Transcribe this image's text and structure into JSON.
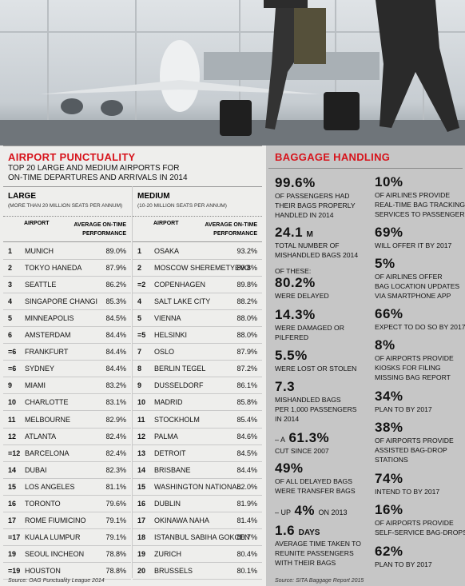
{
  "punctuality": {
    "title": "AIRPORT PUNCTUALITY",
    "subtitle": [
      "TOP 20 LARGE AND MEDIUM AIRPORTS FOR",
      "ON-TIME DEPARTURES AND ARRIVALS IN 2014"
    ],
    "large": {
      "heading": "LARGE",
      "note": "(MORE THAN 20 MILLION SEATS PER ANNUM)",
      "col_airport": "AIRPORT",
      "col_performance": "AVERAGE ON-TIME PERFORMANCE",
      "rows": [
        [
          "1",
          "MUNICH",
          "89.0%"
        ],
        [
          "2",
          "TOKYO HANEDA",
          "87.9%"
        ],
        [
          "3",
          "SEATTLE",
          "86.2%"
        ],
        [
          "4",
          "SINGAPORE CHANGI",
          "85.3%"
        ],
        [
          "5",
          "MINNEAPOLIS",
          "84.5%"
        ],
        [
          "6",
          "AMSTERDAM",
          "84.4%"
        ],
        [
          "=6",
          "FRANKFURT",
          "84.4%"
        ],
        [
          "=6",
          "SYDNEY",
          "84.4%"
        ],
        [
          "9",
          "MIAMI",
          "83.2%"
        ],
        [
          "10",
          "CHARLOTTE",
          "83.1%"
        ],
        [
          "11",
          "MELBOURNE",
          "82.9%"
        ],
        [
          "12",
          "ATLANTA",
          "82.4%"
        ],
        [
          "=12",
          "BARCELONA",
          "82.4%"
        ],
        [
          "14",
          "DUBAI",
          "82.3%"
        ],
        [
          "15",
          "LOS ANGELES",
          "81.1%"
        ],
        [
          "16",
          "TORONTO",
          "79.6%"
        ],
        [
          "17",
          "ROME FIUMICINO",
          "79.1%"
        ],
        [
          "=17",
          "KUALA LUMPUR",
          "79.1%"
        ],
        [
          "19",
          "SEOUL INCHEON",
          "78.8%"
        ],
        [
          "=19",
          "HOUSTON",
          "78.8%"
        ]
      ]
    },
    "medium": {
      "heading": "MEDIUM",
      "note": "(10-20 MILLION SEATS PER ANNUM)",
      "col_airport": "AIRPORT",
      "col_performance": "AVERAGE ON-TIME PERFORMANCE",
      "rows": [
        [
          "1",
          "OSAKA",
          "93.2%"
        ],
        [
          "2",
          "MOSCOW SHEREMETYEVO",
          "89.8%"
        ],
        [
          "=2",
          "COPENHAGEN",
          "89.8%"
        ],
        [
          "4",
          "SALT LAKE CITY",
          "88.2%"
        ],
        [
          "5",
          "VIENNA",
          "88.0%"
        ],
        [
          "=5",
          "HELSINKI",
          "88.0%"
        ],
        [
          "7",
          "OSLO",
          "87.9%"
        ],
        [
          "8",
          "BERLIN TEGEL",
          "87.2%"
        ],
        [
          "9",
          "DUSSELDORF",
          "86.1%"
        ],
        [
          "10",
          "MADRID",
          "85.8%"
        ],
        [
          "11",
          "STOCKHOLM",
          "85.4%"
        ],
        [
          "12",
          "PALMA",
          "84.6%"
        ],
        [
          "13",
          "DETROIT",
          "84.5%"
        ],
        [
          "14",
          "BRISBANE",
          "84.4%"
        ],
        [
          "15",
          "WASHINGTON NATIONAL",
          "82.0%"
        ],
        [
          "16",
          "DUBLIN",
          "81.9%"
        ],
        [
          "17",
          "OKINAWA NAHA",
          "81.4%"
        ],
        [
          "18",
          "ISTANBUL SABIHA GOKCEN",
          "80.7%"
        ],
        [
          "19",
          "ZURICH",
          "80.4%"
        ],
        [
          "20",
          "BRUSSELS",
          "80.1%"
        ]
      ]
    },
    "source": "Source: OAG Punctuality League 2014"
  },
  "baggage": {
    "title": "BAGGAGE HANDLING",
    "col1": [
      {
        "figure": "99.6%",
        "lines": [
          "OF PASSENGERS HAD",
          "THEIR BAGS PROPERLY",
          "HANDLED IN 2014"
        ]
      },
      {
        "figure": "24.1",
        "unit": "M",
        "lines": [
          "TOTAL NUMBER OF",
          "MISHANDLED BAGS 2014"
        ]
      },
      {
        "intro": "OF THESE:",
        "figure": "80.2%",
        "lines": [
          "WERE DELAYED"
        ]
      },
      {
        "figure": "14.3%",
        "lines": [
          "WERE DAMAGED OR",
          "PILFERED"
        ]
      },
      {
        "figure": "5.5%",
        "lines": [
          "WERE LOST OR STOLEN"
        ]
      },
      {
        "figure": "7.3",
        "lines": [
          "MISHANDLED BAGS",
          "PER 1,000 PASSENGERS",
          "IN 2014"
        ]
      },
      {
        "lead": "– A",
        "figure": "61.3%",
        "lines": [
          "CUT SINCE 2007"
        ]
      },
      {
        "figure": "49%",
        "lines": [
          "OF ALL DELAYED BAGS",
          "WERE TRANSFER BAGS"
        ]
      },
      {
        "lead": "– UP",
        "figure": "4%",
        "unit": "ON 2013"
      },
      {
        "figure": "1.6",
        "unit": "DAYS",
        "lines": [
          "AVERAGE TIME TAKEN TO",
          "REUNITE PASSENGERS",
          "WITH THEIR BAGS"
        ]
      }
    ],
    "col2": [
      {
        "figure": "10%",
        "lines": [
          "OF AIRLINES PROVIDE",
          "REAL-TIME BAG TRACKING",
          "SERVICES TO PASSENGERS"
        ]
      },
      {
        "figure": "69%",
        "lines": [
          "WILL OFFER IT BY 2017"
        ]
      },
      {
        "figure": "5%",
        "lines": [
          "OF AIRLINES OFFER",
          "BAG LOCATION UPDATES",
          "VIA SMARTPHONE APP"
        ]
      },
      {
        "figure": "66%",
        "lines": [
          "EXPECT TO DO SO BY 2017"
        ]
      },
      {
        "figure": "8%",
        "lines": [
          "OF AIRPORTS PROVIDE",
          "KIOSKS FOR FILING",
          "MISSING BAG REPORT"
        ]
      },
      {
        "figure": "34%",
        "lines": [
          "PLAN TO BY 2017"
        ]
      },
      {
        "figure": "38%",
        "lines": [
          "OF AIRPORTS PROVIDE",
          "ASSISTED BAG-DROP",
          "STATIONS"
        ]
      },
      {
        "figure": "74%",
        "lines": [
          "INTEND TO BY 2017"
        ]
      },
      {
        "figure": "16%",
        "lines": [
          "OF AIRPORTS PROVIDE",
          "SELF-SERVICE BAG-DROPS"
        ]
      },
      {
        "figure": "62%",
        "lines": [
          "PLAN TO BY 2017"
        ]
      }
    ],
    "source": "Source: SITA Baggage Report 2015"
  }
}
